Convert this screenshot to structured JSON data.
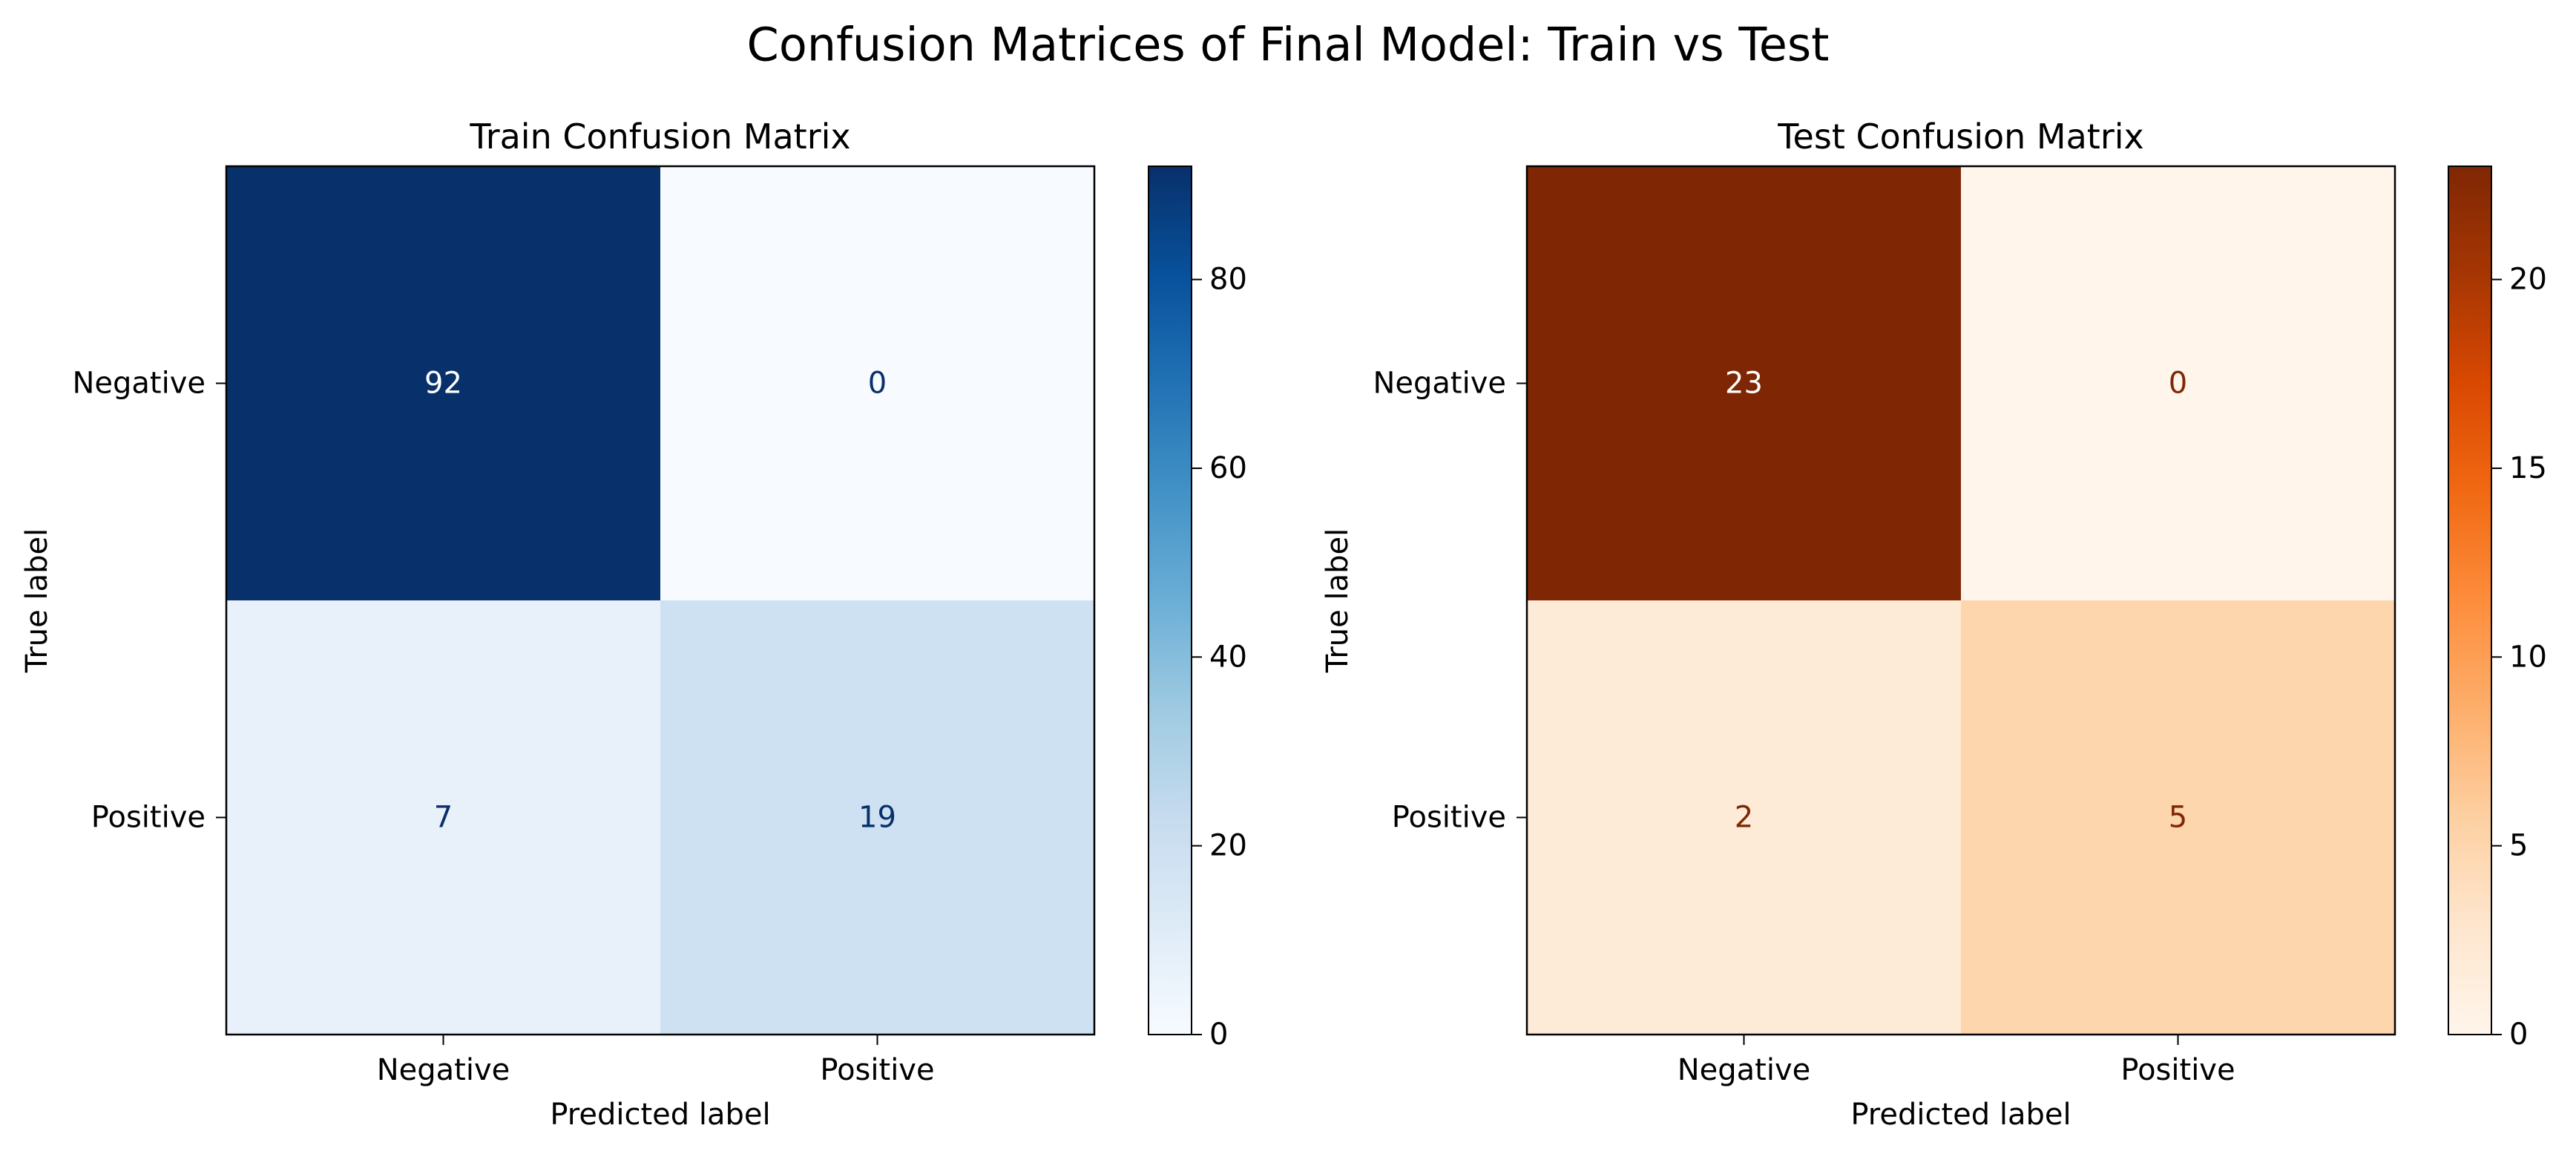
{
  "suptitle": "Confusion Matrices of Final Model: Train vs Test",
  "chart_data": [
    {
      "type": "heatmap",
      "title": "Train Confusion Matrix",
      "xlabel": "Predicted label",
      "ylabel": "True label",
      "x_categories": [
        "Negative",
        "Positive"
      ],
      "y_categories": [
        "Negative",
        "Positive"
      ],
      "values": [
        [
          92,
          0
        ],
        [
          7,
          19
        ]
      ],
      "colormap": "Blues",
      "color_low": "#f7fbff",
      "color_high": "#08306b",
      "text_color_light": "#ffffff",
      "text_color_dark": "#08306b",
      "colorbar": {
        "min": 0,
        "max": 92,
        "ticks": [
          0,
          20,
          40,
          60,
          80
        ],
        "tick_labels": [
          "0",
          "20",
          "40",
          "60",
          "80"
        ]
      }
    },
    {
      "type": "heatmap",
      "title": "Test Confusion Matrix",
      "xlabel": "Predicted label",
      "ylabel": "True label",
      "x_categories": [
        "Negative",
        "Positive"
      ],
      "y_categories": [
        "Negative",
        "Positive"
      ],
      "values": [
        [
          23,
          0
        ],
        [
          2,
          5
        ]
      ],
      "colormap": "Oranges",
      "color_low": "#fff5eb",
      "color_high": "#7f2704",
      "text_color_light": "#ffffff",
      "text_color_dark": "#7f2704",
      "colorbar": {
        "min": 0,
        "max": 23,
        "ticks": [
          0,
          5,
          10,
          15,
          20
        ],
        "tick_labels": [
          "0",
          "5",
          "10",
          "15",
          "20"
        ]
      }
    }
  ]
}
